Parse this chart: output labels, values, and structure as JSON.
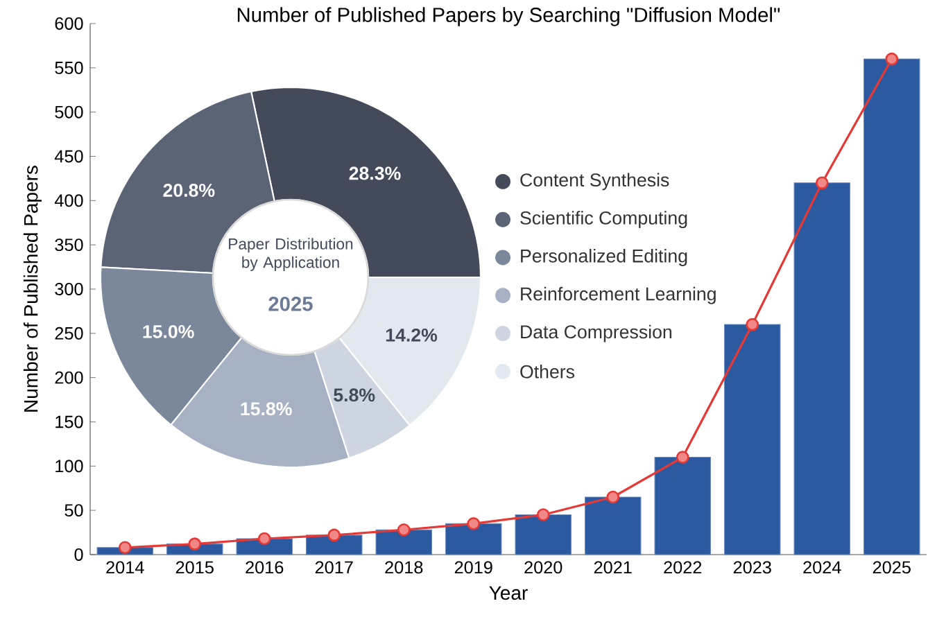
{
  "chart_data": [
    {
      "type": "bar",
      "title": "Number of Published Papers by Searching \"Diffusion Model\"",
      "xlabel": "Year",
      "ylabel": "Number of Published Papers",
      "categories": [
        "2014",
        "2015",
        "2016",
        "2017",
        "2018",
        "2019",
        "2020",
        "2021",
        "2022",
        "2023",
        "2024",
        "2025"
      ],
      "ylim": [
        0,
        600
      ],
      "yticks": [
        0,
        50,
        100,
        150,
        200,
        250,
        300,
        350,
        400,
        450,
        500,
        550,
        600
      ],
      "series": [
        {
          "type": "bar",
          "color": "#2c5aa0",
          "values": [
            8,
            12,
            18,
            22,
            28,
            35,
            45,
            65,
            110,
            260,
            420,
            560
          ]
        },
        {
          "type": "line",
          "color": "#e53935",
          "marker": "circle",
          "values": [
            8,
            12,
            18,
            22,
            28,
            35,
            45,
            65,
            110,
            260,
            420,
            560
          ]
        }
      ]
    },
    {
      "type": "donut",
      "title": "Paper Distribution by Application",
      "subtitle": "2025",
      "legend": "right",
      "categories": [
        "Content Synthesis",
        "Scientific Computing",
        "Personalized Editing",
        "Reinforcement Learning",
        "Data Compression",
        "Others"
      ],
      "values": [
        28.3,
        20.8,
        15.0,
        15.8,
        5.8,
        14.2
      ],
      "colors": [
        "#434b5a",
        "#5b6475",
        "#7b879a",
        "#a6b2c3",
        "#cdd5e0",
        "#e2e8f0"
      ],
      "value_labels": [
        "28.3%",
        "20.8%",
        "15.0%",
        "15.8%",
        "5.8%",
        "14.2%"
      ]
    }
  ]
}
